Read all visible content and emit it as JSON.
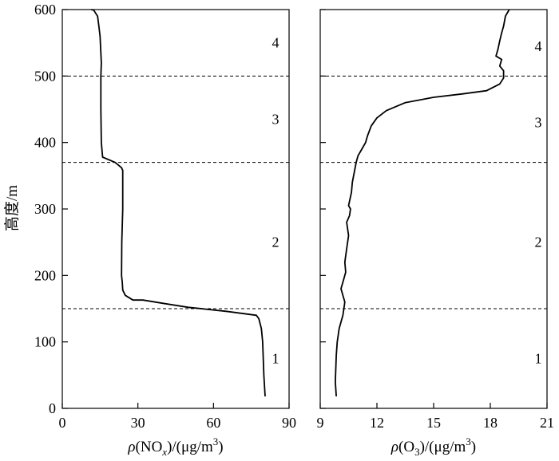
{
  "chart_data": [
    {
      "type": "line",
      "xlabel": "ρ(NOx)/(μg/m³)",
      "xlabel_parts": [
        "ρ",
        "(NO",
        "x",
        ")/(μg/m",
        "3",
        ")"
      ],
      "ylabel": "高度/m",
      "xlim": [
        0,
        90
      ],
      "ylim": [
        0,
        600
      ],
      "xticks": [
        "0",
        "30",
        "60",
        "90"
      ],
      "yticks": [
        "0",
        "100",
        "200",
        "300",
        "400",
        "500",
        "600"
      ],
      "layer_boundaries": [
        150,
        370,
        500
      ],
      "layer_labels": [
        {
          "label": "1",
          "y": 75
        },
        {
          "label": "2",
          "y": 250
        },
        {
          "label": "3",
          "y": 435
        },
        {
          "label": "4",
          "y": 550
        }
      ],
      "series": [
        {
          "x": [
            80.5,
            80,
            79.5,
            79,
            78,
            77,
            65,
            50,
            40,
            32,
            28,
            25,
            24,
            23.8,
            23.5,
            23.6,
            24,
            24,
            24,
            24,
            23.5,
            21,
            16,
            15.5,
            15.3,
            15.3,
            15.5,
            15,
            14.5,
            14,
            12.5,
            11.5
          ],
          "y": [
            18,
            50,
            100,
            120,
            135,
            140,
            146,
            152,
            158,
            163,
            163,
            170,
            178,
            190,
            200,
            250,
            300,
            340,
            350,
            358,
            362,
            370,
            378,
            400,
            450,
            500,
            520,
            560,
            575,
            590,
            599,
            600
          ]
        }
      ]
    },
    {
      "type": "line",
      "xlabel": "ρ(O₃)/(μg/m³)",
      "xlabel_parts": [
        "ρ",
        "(O",
        "3",
        ")/(μg/m",
        "3",
        ")"
      ],
      "xlim": [
        9,
        21
      ],
      "ylim": [
        0,
        600
      ],
      "xticks": [
        "9",
        "12",
        "15",
        "18",
        "21"
      ],
      "layer_boundaries": [
        150,
        370,
        500
      ],
      "layer_labels": [
        {
          "label": "1",
          "y": 75
        },
        {
          "label": "2",
          "y": 250
        },
        {
          "label": "3",
          "y": 430
        },
        {
          "label": "4",
          "y": 545
        }
      ],
      "series": [
        {
          "x": [
            9.85,
            9.8,
            9.85,
            9.9,
            10.0,
            10.1,
            10.2,
            10.25,
            10.3,
            10.1,
            10.2,
            10.35,
            10.3,
            10.4,
            10.5,
            10.4,
            10.55,
            10.6,
            10.5,
            10.65,
            10.7,
            10.8,
            10.9,
            11.0,
            11.2,
            11.4,
            11.5,
            11.7,
            12.0,
            12.5,
            13.5,
            15.0,
            16.5,
            17.8,
            18.5,
            18.7,
            18.7,
            18.5,
            18.6,
            18.3,
            18.4,
            18.5,
            18.6,
            18.7,
            18.8,
            19.0
          ],
          "y": [
            18,
            40,
            80,
            100,
            120,
            130,
            140,
            150,
            160,
            180,
            190,
            205,
            220,
            240,
            260,
            280,
            290,
            300,
            305,
            325,
            340,
            355,
            370,
            380,
            390,
            400,
            410,
            425,
            437,
            448,
            460,
            468,
            473,
            478,
            488,
            497,
            508,
            515,
            525,
            530,
            540,
            553,
            565,
            575,
            590,
            600
          ]
        }
      ]
    }
  ]
}
